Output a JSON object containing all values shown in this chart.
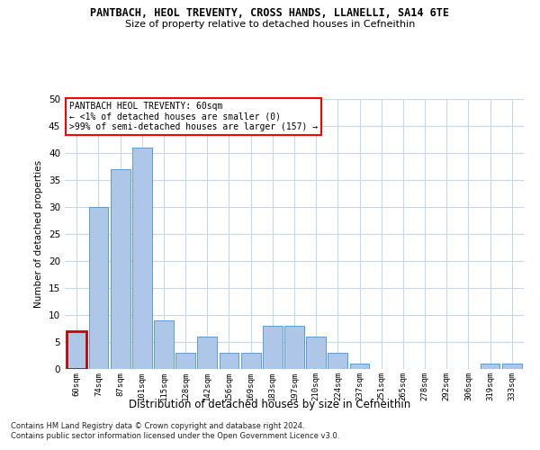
{
  "title1": "PANTBACH, HEOL TREVENTY, CROSS HANDS, LLANELLI, SA14 6TE",
  "title2": "Size of property relative to detached houses in Cefneithin",
  "xlabel": "Distribution of detached houses by size in Cefneithin",
  "ylabel": "Number of detached properties",
  "categories": [
    "60sqm",
    "74sqm",
    "87sqm",
    "101sqm",
    "115sqm",
    "128sqm",
    "142sqm",
    "156sqm",
    "169sqm",
    "183sqm",
    "197sqm",
    "210sqm",
    "224sqm",
    "237sqm",
    "251sqm",
    "265sqm",
    "278sqm",
    "292sqm",
    "306sqm",
    "319sqm",
    "333sqm"
  ],
  "values": [
    7,
    30,
    37,
    41,
    9,
    3,
    6,
    3,
    3,
    8,
    8,
    6,
    3,
    1,
    0,
    0,
    0,
    0,
    0,
    1,
    1
  ],
  "bar_color": "#aec6e8",
  "bar_edge_color": "#5b9bd5",
  "highlight_index": 0,
  "highlight_color": "#cc0000",
  "annotation_title": "PANTBACH HEOL TREVENTY: 60sqm",
  "annotation_line2": "← <1% of detached houses are smaller (0)",
  "annotation_line3": ">99% of semi-detached houses are larger (157) →",
  "ylim": [
    0,
    50
  ],
  "yticks": [
    0,
    5,
    10,
    15,
    20,
    25,
    30,
    35,
    40,
    45,
    50
  ],
  "footer1": "Contains HM Land Registry data © Crown copyright and database right 2024.",
  "footer2": "Contains public sector information licensed under the Open Government Licence v3.0.",
  "bg_color": "#ffffff",
  "grid_color": "#c8d8e8"
}
